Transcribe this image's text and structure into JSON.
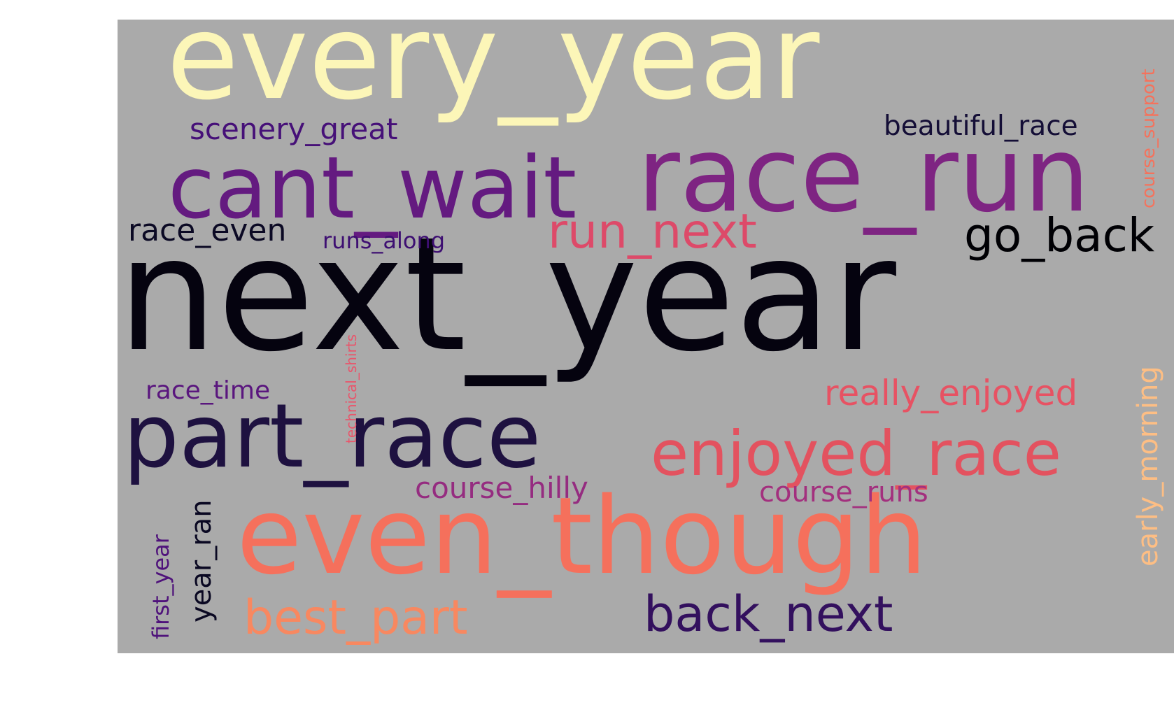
{
  "colors": {
    "background": "#aaaaaa"
  },
  "words": [
    {
      "text": "next_year",
      "color": "#05030f"
    },
    {
      "text": "every_year",
      "color": "#fcf6b8"
    },
    {
      "text": "race_run",
      "color": "#7e2482"
    },
    {
      "text": "cant_wait",
      "color": "#641a80"
    },
    {
      "text": "even_though",
      "color": "#f5705c"
    },
    {
      "text": "part_race",
      "color": "#1e1140"
    },
    {
      "text": "enjoyed_race",
      "color": "#e3525f"
    },
    {
      "text": "back_next",
      "color": "#33105e"
    },
    {
      "text": "best_part",
      "color": "#f88860"
    },
    {
      "text": "run_next",
      "color": "#dd4a69"
    },
    {
      "text": "go_back",
      "color": "#000004"
    },
    {
      "text": "really_enjoyed",
      "color": "#e75263"
    },
    {
      "text": "race_even",
      "color": "#0b0924"
    },
    {
      "text": "scenery_great",
      "color": "#461078"
    },
    {
      "text": "beautiful_race",
      "color": "#140e36"
    },
    {
      "text": "runs_along",
      "color": "#3e0f72"
    },
    {
      "text": "race_time",
      "color": "#5a167e"
    },
    {
      "text": "course_hilly",
      "color": "#952c80"
    },
    {
      "text": "course_runs",
      "color": "#a3307e"
    },
    {
      "text": "early_morning",
      "color": "#fdbe84"
    },
    {
      "text": "course_support",
      "color": "#f5725c"
    },
    {
      "text": "technical_shirts",
      "color": "#e9556b"
    },
    {
      "text": "first_year",
      "color": "#4f127b"
    },
    {
      "text": "year_ran",
      "color": "#0a0822"
    }
  ]
}
